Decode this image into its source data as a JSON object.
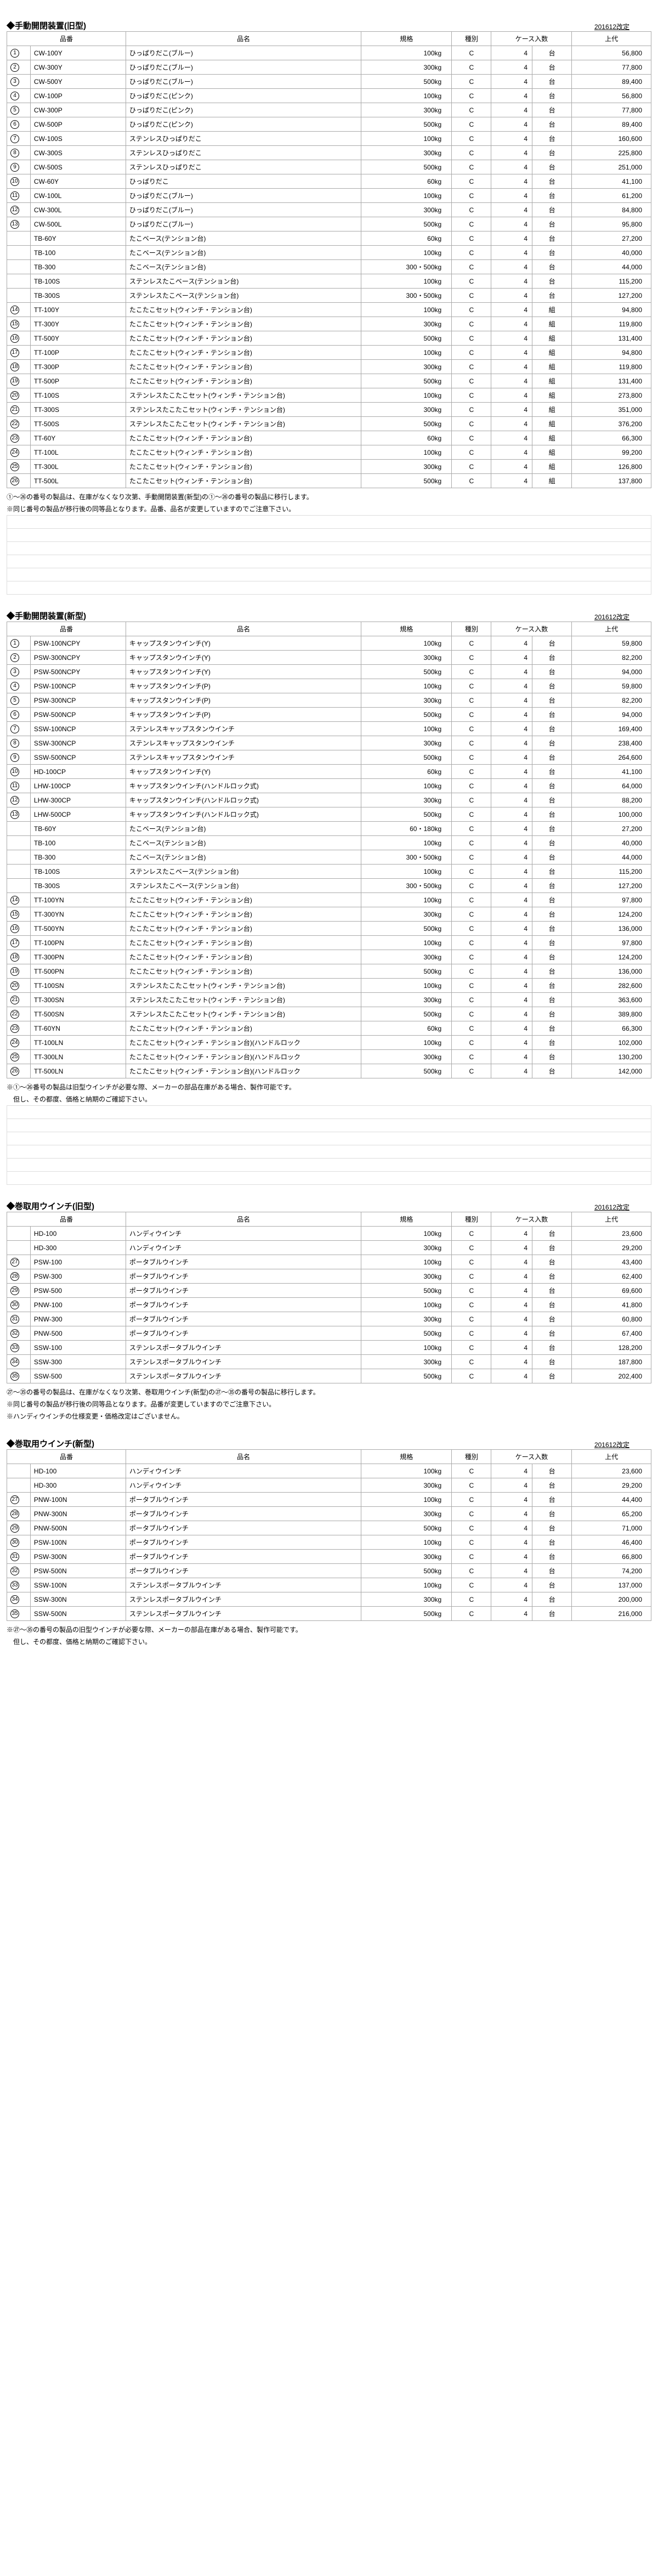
{
  "revLabel": "201612改定",
  "headers": {
    "code": "品番",
    "name": "品名",
    "spec": "規格",
    "kind": "種別",
    "qty": "ケース入数",
    "price": "上代"
  },
  "sect1": {
    "title": "◆手動開閉装置(旧型)",
    "rows": [
      {
        "n": 1,
        "code": "CW-100Y",
        "name": "ひっぱりだこ(ブルー)",
        "spec": "100kg",
        "kind": "C",
        "qty": 4,
        "unit": "台",
        "price": "56,800"
      },
      {
        "n": 2,
        "code": "CW-300Y",
        "name": "ひっぱりだこ(ブルー)",
        "spec": "300kg",
        "kind": "C",
        "qty": 4,
        "unit": "台",
        "price": "77,800"
      },
      {
        "n": 3,
        "code": "CW-500Y",
        "name": "ひっぱりだこ(ブルー)",
        "spec": "500kg",
        "kind": "C",
        "qty": 4,
        "unit": "台",
        "price": "89,400"
      },
      {
        "n": 4,
        "code": "CW-100P",
        "name": "ひっぱりだこ(ピンク)",
        "spec": "100kg",
        "kind": "C",
        "qty": 4,
        "unit": "台",
        "price": "56,800"
      },
      {
        "n": 5,
        "code": "CW-300P",
        "name": "ひっぱりだこ(ピンク)",
        "spec": "300kg",
        "kind": "C",
        "qty": 4,
        "unit": "台",
        "price": "77,800"
      },
      {
        "n": 6,
        "code": "CW-500P",
        "name": "ひっぱりだこ(ピンク)",
        "spec": "500kg",
        "kind": "C",
        "qty": 4,
        "unit": "台",
        "price": "89,400"
      },
      {
        "n": 7,
        "code": "CW-100S",
        "name": "ステンレスひっぱりだこ",
        "spec": "100kg",
        "kind": "C",
        "qty": 4,
        "unit": "台",
        "price": "160,600"
      },
      {
        "n": 8,
        "code": "CW-300S",
        "name": "ステンレスひっぱりだこ",
        "spec": "300kg",
        "kind": "C",
        "qty": 4,
        "unit": "台",
        "price": "225,800"
      },
      {
        "n": 9,
        "code": "CW-500S",
        "name": "ステンレスひっぱりだこ",
        "spec": "500kg",
        "kind": "C",
        "qty": 4,
        "unit": "台",
        "price": "251,000"
      },
      {
        "n": 10,
        "code": "CW-60Y",
        "name": "ひっぱりだこ",
        "spec": "60kg",
        "kind": "C",
        "qty": 4,
        "unit": "台",
        "price": "41,100"
      },
      {
        "n": 11,
        "code": "CW-100L",
        "name": "ひっぱりだこ(ブルー)",
        "spec": "100kg",
        "kind": "C",
        "qty": 4,
        "unit": "台",
        "price": "61,200"
      },
      {
        "n": 12,
        "code": "CW-300L",
        "name": "ひっぱりだこ(ブルー)",
        "spec": "300kg",
        "kind": "C",
        "qty": 4,
        "unit": "台",
        "price": "84,800"
      },
      {
        "n": 13,
        "code": "CW-500L",
        "name": "ひっぱりだこ(ブルー)",
        "spec": "500kg",
        "kind": "C",
        "qty": 4,
        "unit": "台",
        "price": "95,800"
      },
      {
        "n": 0,
        "code": "TB-60Y",
        "name": "たこベース(テンション台)",
        "spec": "60kg",
        "kind": "C",
        "qty": 4,
        "unit": "台",
        "price": "27,200"
      },
      {
        "n": 0,
        "code": "TB-100",
        "name": "たこベース(テンション台)",
        "spec": "100kg",
        "kind": "C",
        "qty": 4,
        "unit": "台",
        "price": "40,000"
      },
      {
        "n": 0,
        "code": "TB-300",
        "name": "たこベース(テンション台)",
        "spec": "300・500kg",
        "kind": "C",
        "qty": 4,
        "unit": "台",
        "price": "44,000"
      },
      {
        "n": 0,
        "code": "TB-100S",
        "name": "ステンレスたこベース(テンション台)",
        "spec": "100kg",
        "kind": "C",
        "qty": 4,
        "unit": "台",
        "price": "115,200"
      },
      {
        "n": 0,
        "code": "TB-300S",
        "name": "ステンレスたこベース(テンション台)",
        "spec": "300・500kg",
        "kind": "C",
        "qty": 4,
        "unit": "台",
        "price": "127,200"
      },
      {
        "n": 14,
        "code": "TT-100Y",
        "name": "たこたこセット(ウィンチ・テンション台)",
        "spec": "100kg",
        "kind": "C",
        "qty": 4,
        "unit": "組",
        "price": "94,800"
      },
      {
        "n": 15,
        "code": "TT-300Y",
        "name": "たこたこセット(ウィンチ・テンション台)",
        "spec": "300kg",
        "kind": "C",
        "qty": 4,
        "unit": "組",
        "price": "119,800"
      },
      {
        "n": 16,
        "code": "TT-500Y",
        "name": "たこたこセット(ウィンチ・テンション台)",
        "spec": "500kg",
        "kind": "C",
        "qty": 4,
        "unit": "組",
        "price": "131,400"
      },
      {
        "n": 17,
        "code": "TT-100P",
        "name": "たこたこセット(ウィンチ・テンション台)",
        "spec": "100kg",
        "kind": "C",
        "qty": 4,
        "unit": "組",
        "price": "94,800"
      },
      {
        "n": 18,
        "code": "TT-300P",
        "name": "たこたこセット(ウィンチ・テンション台)",
        "spec": "300kg",
        "kind": "C",
        "qty": 4,
        "unit": "組",
        "price": "119,800"
      },
      {
        "n": 19,
        "code": "TT-500P",
        "name": "たこたこセット(ウィンチ・テンション台)",
        "spec": "500kg",
        "kind": "C",
        "qty": 4,
        "unit": "組",
        "price": "131,400"
      },
      {
        "n": 20,
        "code": "TT-100S",
        "name": "ステンレスたこたこセット(ウィンチ・テンション台)",
        "spec": "100kg",
        "kind": "C",
        "qty": 4,
        "unit": "組",
        "price": "273,800"
      },
      {
        "n": 21,
        "code": "TT-300S",
        "name": "ステンレスたこたこセット(ウィンチ・テンション台)",
        "spec": "300kg",
        "kind": "C",
        "qty": 4,
        "unit": "組",
        "price": "351,000"
      },
      {
        "n": 22,
        "code": "TT-500S",
        "name": "ステンレスたこたこセット(ウィンチ・テンション台)",
        "spec": "500kg",
        "kind": "C",
        "qty": 4,
        "unit": "組",
        "price": "376,200"
      },
      {
        "n": 23,
        "code": "TT-60Y",
        "name": "たこたこセット(ウィンチ・テンション台)",
        "spec": "60kg",
        "kind": "C",
        "qty": 4,
        "unit": "組",
        "price": "66,300"
      },
      {
        "n": 24,
        "code": "TT-100L",
        "name": "たこたこセット(ウィンチ・テンション台)",
        "spec": "100kg",
        "kind": "C",
        "qty": 4,
        "unit": "組",
        "price": "99,200"
      },
      {
        "n": 25,
        "code": "TT-300L",
        "name": "たこたこセット(ウィンチ・テンション台)",
        "spec": "300kg",
        "kind": "C",
        "qty": 4,
        "unit": "組",
        "price": "126,800"
      },
      {
        "n": 26,
        "code": "TT-500L",
        "name": "たこたこセット(ウィンチ・テンション台)",
        "spec": "500kg",
        "kind": "C",
        "qty": 4,
        "unit": "組",
        "price": "137,800"
      }
    ],
    "note1a": "①～㉖の番号の製品は、在庫がなくなり次第、手動開閉装置(新型)の①～㉖の番号の製品に移行します。",
    "note1b": "※同じ番号の製品が移行後の同等品となります。品番、品名が変更していますのでご注意下さい。"
  },
  "sect2": {
    "title": "◆手動開閉装置(新型)",
    "rows": [
      {
        "n": 1,
        "code": "PSW-100NCPY",
        "name": "キャップスタンウインチ(Y)",
        "spec": "100kg",
        "kind": "C",
        "qty": 4,
        "unit": "台",
        "price": "59,800"
      },
      {
        "n": 2,
        "code": "PSW-300NCPY",
        "name": "キャップスタンウインチ(Y)",
        "spec": "300kg",
        "kind": "C",
        "qty": 4,
        "unit": "台",
        "price": "82,200"
      },
      {
        "n": 3,
        "code": "PSW-500NCPY",
        "name": "キャップスタンウインチ(Y)",
        "spec": "500kg",
        "kind": "C",
        "qty": 4,
        "unit": "台",
        "price": "94,000"
      },
      {
        "n": 4,
        "code": "PSW-100NCP",
        "name": "キャップスタンウインチ(P)",
        "spec": "100kg",
        "kind": "C",
        "qty": 4,
        "unit": "台",
        "price": "59,800"
      },
      {
        "n": 5,
        "code": "PSW-300NCP",
        "name": "キャップスタンウインチ(P)",
        "spec": "300kg",
        "kind": "C",
        "qty": 4,
        "unit": "台",
        "price": "82,200"
      },
      {
        "n": 6,
        "code": "PSW-500NCP",
        "name": "キャップスタンウインチ(P)",
        "spec": "500kg",
        "kind": "C",
        "qty": 4,
        "unit": "台",
        "price": "94,000"
      },
      {
        "n": 7,
        "code": "SSW-100NCP",
        "name": "ステンレスキャップスタンウインチ",
        "spec": "100kg",
        "kind": "C",
        "qty": 4,
        "unit": "台",
        "price": "169,400"
      },
      {
        "n": 8,
        "code": "SSW-300NCP",
        "name": "ステンレスキャップスタンウインチ",
        "spec": "300kg",
        "kind": "C",
        "qty": 4,
        "unit": "台",
        "price": "238,400"
      },
      {
        "n": 9,
        "code": "SSW-500NCP",
        "name": "ステンレスキャップスタンウインチ",
        "spec": "500kg",
        "kind": "C",
        "qty": 4,
        "unit": "台",
        "price": "264,600"
      },
      {
        "n": 10,
        "code": "HD-100CP",
        "name": "キャップスタンウインチ(Y)",
        "spec": "60kg",
        "kind": "C",
        "qty": 4,
        "unit": "台",
        "price": "41,100"
      },
      {
        "n": 11,
        "code": "LHW-100CP",
        "name": "キャップスタンウインチ(ハンドルロック式)",
        "spec": "100kg",
        "kind": "C",
        "qty": 4,
        "unit": "台",
        "price": "64,000"
      },
      {
        "n": 12,
        "code": "LHW-300CP",
        "name": "キャップスタンウインチ(ハンドルロック式)",
        "spec": "300kg",
        "kind": "C",
        "qty": 4,
        "unit": "台",
        "price": "88,200"
      },
      {
        "n": 13,
        "code": "LHW-500CP",
        "name": "キャップスタンウインチ(ハンドルロック式)",
        "spec": "500kg",
        "kind": "C",
        "qty": 4,
        "unit": "台",
        "price": "100,000"
      },
      {
        "n": 0,
        "code": "TB-60Y",
        "name": "たこベース(テンション台)",
        "spec": "60・180kg",
        "kind": "C",
        "qty": 4,
        "unit": "台",
        "price": "27,200"
      },
      {
        "n": 0,
        "code": "TB-100",
        "name": "たこベース(テンション台)",
        "spec": "100kg",
        "kind": "C",
        "qty": 4,
        "unit": "台",
        "price": "40,000"
      },
      {
        "n": 0,
        "code": "TB-300",
        "name": "たこベース(テンション台)",
        "spec": "300・500kg",
        "kind": "C",
        "qty": 4,
        "unit": "台",
        "price": "44,000"
      },
      {
        "n": 0,
        "code": "TB-100S",
        "name": "ステンレスたこベース(テンション台)",
        "spec": "100kg",
        "kind": "C",
        "qty": 4,
        "unit": "台",
        "price": "115,200"
      },
      {
        "n": 0,
        "code": "TB-300S",
        "name": "ステンレスたこベース(テンション台)",
        "spec": "300・500kg",
        "kind": "C",
        "qty": 4,
        "unit": "台",
        "price": "127,200"
      },
      {
        "n": 14,
        "code": "TT-100YN",
        "name": "たこたこセット(ウィンチ・テンション台)",
        "spec": "100kg",
        "kind": "C",
        "qty": 4,
        "unit": "台",
        "price": "97,800"
      },
      {
        "n": 15,
        "code": "TT-300YN",
        "name": "たこたこセット(ウィンチ・テンション台)",
        "spec": "300kg",
        "kind": "C",
        "qty": 4,
        "unit": "台",
        "price": "124,200"
      },
      {
        "n": 16,
        "code": "TT-500YN",
        "name": "たこたこセット(ウィンチ・テンション台)",
        "spec": "500kg",
        "kind": "C",
        "qty": 4,
        "unit": "台",
        "price": "136,000"
      },
      {
        "n": 17,
        "code": "TT-100PN",
        "name": "たこたこセット(ウィンチ・テンション台)",
        "spec": "100kg",
        "kind": "C",
        "qty": 4,
        "unit": "台",
        "price": "97,800"
      },
      {
        "n": 18,
        "code": "TT-300PN",
        "name": "たこたこセット(ウィンチ・テンション台)",
        "spec": "300kg",
        "kind": "C",
        "qty": 4,
        "unit": "台",
        "price": "124,200"
      },
      {
        "n": 19,
        "code": "TT-500PN",
        "name": "たこたこセット(ウィンチ・テンション台)",
        "spec": "500kg",
        "kind": "C",
        "qty": 4,
        "unit": "台",
        "price": "136,000"
      },
      {
        "n": 20,
        "code": "TT-100SN",
        "name": "ステンレスたこたこセット(ウィンチ・テンション台)",
        "spec": "100kg",
        "kind": "C",
        "qty": 4,
        "unit": "台",
        "price": "282,600"
      },
      {
        "n": 21,
        "code": "TT-300SN",
        "name": "ステンレスたこたこセット(ウィンチ・テンション台)",
        "spec": "300kg",
        "kind": "C",
        "qty": 4,
        "unit": "台",
        "price": "363,600"
      },
      {
        "n": 22,
        "code": "TT-500SN",
        "name": "ステンレスたこたこセット(ウィンチ・テンション台)",
        "spec": "500kg",
        "kind": "C",
        "qty": 4,
        "unit": "台",
        "price": "389,800"
      },
      {
        "n": 23,
        "code": "TT-60YN",
        "name": "たこたこセット(ウィンチ・テンション台)",
        "spec": "60kg",
        "kind": "C",
        "qty": 4,
        "unit": "台",
        "price": "66,300"
      },
      {
        "n": 24,
        "code": "TT-100LN",
        "name": "たこたこセット(ウィンチ・テンション台)(ハンドルロック",
        "spec": "100kg",
        "kind": "C",
        "qty": 4,
        "unit": "台",
        "price": "102,000"
      },
      {
        "n": 25,
        "code": "TT-300LN",
        "name": "たこたこセット(ウィンチ・テンション台)(ハンドルロック",
        "spec": "300kg",
        "kind": "C",
        "qty": 4,
        "unit": "台",
        "price": "130,200"
      },
      {
        "n": 26,
        "code": "TT-500LN",
        "name": "たこたこセット(ウィンチ・テンション台)(ハンドルロック",
        "spec": "500kg",
        "kind": "C",
        "qty": 4,
        "unit": "台",
        "price": "142,000"
      }
    ],
    "note2a": "※①～㉖番号の製品は旧型ウインチが必要な際、メーカーの部品在庫がある場合、製作可能です。",
    "note2b": "　但し、その都度、価格と納期のご確認下さい。"
  },
  "sect3": {
    "title": "◆巻取用ウインチ(旧型)",
    "rows": [
      {
        "n": 0,
        "code": "HD-100",
        "name": "ハンディウインチ",
        "spec": "100kg",
        "kind": "C",
        "qty": 4,
        "unit": "台",
        "price": "23,600"
      },
      {
        "n": 0,
        "code": "HD-300",
        "name": "ハンディウインチ",
        "spec": "300kg",
        "kind": "C",
        "qty": 4,
        "unit": "台",
        "price": "29,200"
      },
      {
        "n": 27,
        "code": "PSW-100",
        "name": "ポータブルウインチ",
        "spec": "100kg",
        "kind": "C",
        "qty": 4,
        "unit": "台",
        "price": "43,400"
      },
      {
        "n": 28,
        "code": "PSW-300",
        "name": "ポータブルウインチ",
        "spec": "300kg",
        "kind": "C",
        "qty": 4,
        "unit": "台",
        "price": "62,400"
      },
      {
        "n": 29,
        "code": "PSW-500",
        "name": "ポータブルウインチ",
        "spec": "500kg",
        "kind": "C",
        "qty": 4,
        "unit": "台",
        "price": "69,600"
      },
      {
        "n": 30,
        "code": "PNW-100",
        "name": "ポータブルウインチ",
        "spec": "100kg",
        "kind": "C",
        "qty": 4,
        "unit": "台",
        "price": "41,800"
      },
      {
        "n": 31,
        "code": "PNW-300",
        "name": "ポータブルウインチ",
        "spec": "300kg",
        "kind": "C",
        "qty": 4,
        "unit": "台",
        "price": "60,800"
      },
      {
        "n": 32,
        "code": "PNW-500",
        "name": "ポータブルウインチ",
        "spec": "500kg",
        "kind": "C",
        "qty": 4,
        "unit": "台",
        "price": "67,400"
      },
      {
        "n": 33,
        "code": "SSW-100",
        "name": "ステンレスポータブルウインチ",
        "spec": "100kg",
        "kind": "C",
        "qty": 4,
        "unit": "台",
        "price": "128,200"
      },
      {
        "n": 34,
        "code": "SSW-300",
        "name": "ステンレスポータブルウインチ",
        "spec": "300kg",
        "kind": "C",
        "qty": 4,
        "unit": "台",
        "price": "187,800"
      },
      {
        "n": 35,
        "code": "SSW-500",
        "name": "ステンレスポータブルウインチ",
        "spec": "500kg",
        "kind": "C",
        "qty": 4,
        "unit": "台",
        "price": "202,400"
      }
    ],
    "note3a": "㉗～㉟の番号の製品は、在庫がなくなり次第、巻取用ウインチ(新型)の㉗～㉟の番号の製品に移行します。",
    "note3b": "※同じ番号の製品が移行後の同等品となります。品番が変更していますのでご注意下さい。",
    "note3c": "※ハンディウインチの仕様変更・価格改定はございません。"
  },
  "sect4": {
    "title": "◆巻取用ウインチ(新型)",
    "rows": [
      {
        "n": 0,
        "code": "HD-100",
        "name": "ハンディウインチ",
        "spec": "100kg",
        "kind": "C",
        "qty": 4,
        "unit": "台",
        "price": "23,600"
      },
      {
        "n": 0,
        "code": "HD-300",
        "name": "ハンディウインチ",
        "spec": "300kg",
        "kind": "C",
        "qty": 4,
        "unit": "台",
        "price": "29,200"
      },
      {
        "n": 27,
        "code": "PNW-100N",
        "name": "ポータブルウインチ",
        "spec": "100kg",
        "kind": "C",
        "qty": 4,
        "unit": "台",
        "price": "44,400"
      },
      {
        "n": 28,
        "code": "PNW-300N",
        "name": "ポータブルウインチ",
        "spec": "300kg",
        "kind": "C",
        "qty": 4,
        "unit": "台",
        "price": "65,200"
      },
      {
        "n": 29,
        "code": "PNW-500N",
        "name": "ポータブルウインチ",
        "spec": "500kg",
        "kind": "C",
        "qty": 4,
        "unit": "台",
        "price": "71,000"
      },
      {
        "n": 30,
        "code": "PSW-100N",
        "name": "ポータブルウインチ",
        "spec": "100kg",
        "kind": "C",
        "qty": 4,
        "unit": "台",
        "price": "46,400"
      },
      {
        "n": 31,
        "code": "PSW-300N",
        "name": "ポータブルウインチ",
        "spec": "300kg",
        "kind": "C",
        "qty": 4,
        "unit": "台",
        "price": "66,800"
      },
      {
        "n": 32,
        "code": "PSW-500N",
        "name": "ポータブルウインチ",
        "spec": "500kg",
        "kind": "C",
        "qty": 4,
        "unit": "台",
        "price": "74,200"
      },
      {
        "n": 33,
        "code": "SSW-100N",
        "name": "ステンレスポータブルウインチ",
        "spec": "100kg",
        "kind": "C",
        "qty": 4,
        "unit": "台",
        "price": "137,000"
      },
      {
        "n": 34,
        "code": "SSW-300N",
        "name": "ステンレスポータブルウインチ",
        "spec": "300kg",
        "kind": "C",
        "qty": 4,
        "unit": "台",
        "price": "200,000"
      },
      {
        "n": 35,
        "code": "SSW-500N",
        "name": "ステンレスポータブルウインチ",
        "spec": "500kg",
        "kind": "C",
        "qty": 4,
        "unit": "台",
        "price": "216,000"
      }
    ],
    "note4a": "※㉗～㉟の番号の製品の旧型ウインチが必要な際、メーカーの部品在庫がある場合、製作可能です。",
    "note4b": "　但し、その都度、価格と納期のご確認下さい。"
  }
}
